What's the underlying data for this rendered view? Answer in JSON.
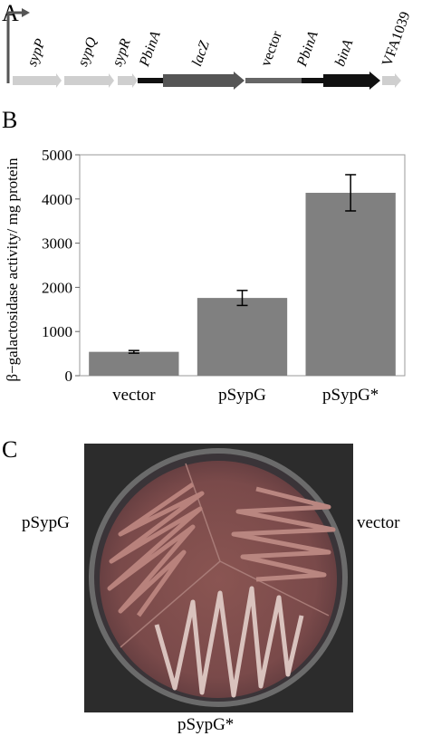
{
  "panels": {
    "a": "A",
    "b": "B",
    "c": "C"
  },
  "map": {
    "genes": [
      {
        "label": "sypP",
        "italic": true,
        "color": "#cfcfcf"
      },
      {
        "label": "sypQ",
        "italic": true,
        "color": "#cfcfcf"
      },
      {
        "label": "sypR",
        "italic": true,
        "color": "#cfcfcf"
      },
      {
        "label": "PbinA",
        "italic": true,
        "color": "#111111"
      },
      {
        "label": "lacZ",
        "italic": true,
        "color": "#555555"
      },
      {
        "label": "vector",
        "italic": false,
        "color": "#666666"
      },
      {
        "label": "PbinA",
        "italic": true,
        "color": "#111111"
      },
      {
        "label": "binA",
        "italic": true,
        "color": "#111111"
      },
      {
        "label": "VFA1039",
        "italic": false,
        "color": "#cfcfcf"
      }
    ]
  },
  "chart_data": {
    "type": "bar",
    "categories": [
      "vector",
      "pSypG",
      "pSypG*"
    ],
    "values": [
      540,
      1760,
      4140
    ],
    "errors": [
      30,
      170,
      410
    ],
    "ylabel": "β−galactosidase activity/ mg protein",
    "ylim": [
      0,
      5000
    ],
    "yticks": [
      "0",
      "1000",
      "2000",
      "3000",
      "4000",
      "5000"
    ],
    "grid": false,
    "bar_color": "#808080"
  },
  "plate": {
    "labels": {
      "left": "pSypG",
      "right": "vector",
      "bottom": "pSypG*"
    }
  }
}
